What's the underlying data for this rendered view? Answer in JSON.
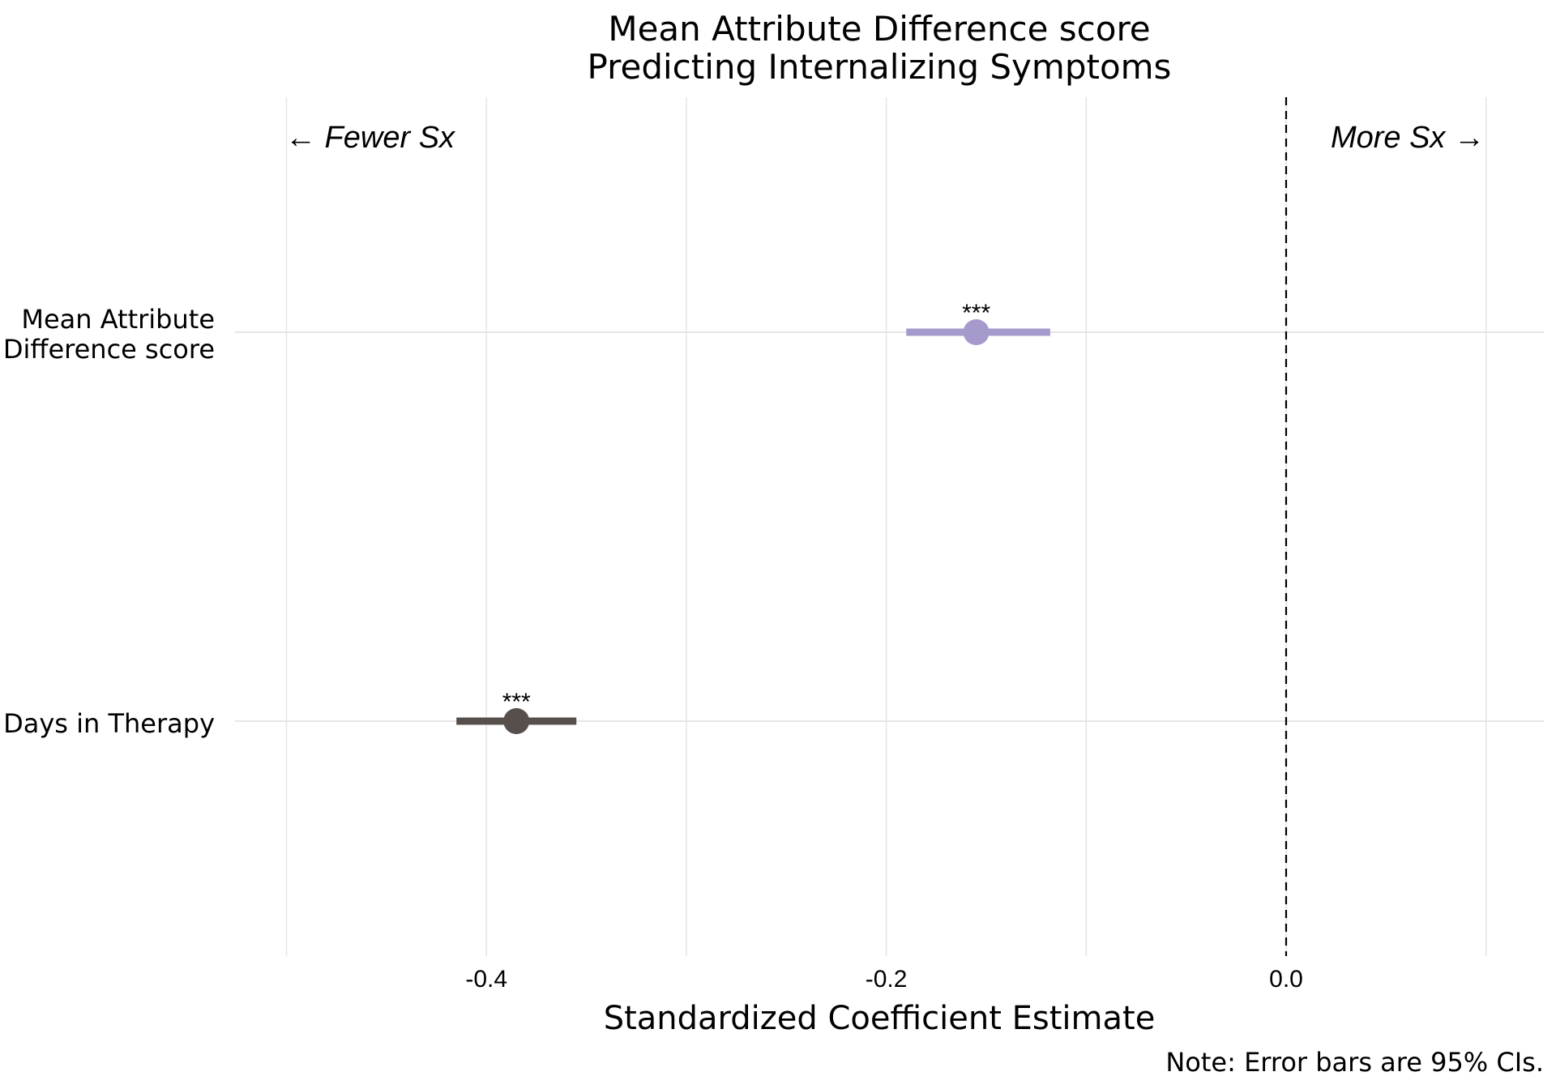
{
  "chart_data": {
    "type": "scatter",
    "subtype": "coefficient-plot",
    "title": [
      "Mean Attribute Difference score",
      "Predicting Internalizing Symptoms"
    ],
    "xlabel": "Standardized Coefficient Estimate",
    "ylabel": "",
    "xlim": [
      -0.5,
      0.13
    ],
    "x_ticks": [
      -0.4,
      -0.2,
      0.0
    ],
    "x_tick_labels": [
      "-0.4",
      "-0.2",
      "0.0"
    ],
    "reference_line": 0.0,
    "grid": true,
    "categories": [
      [
        "Mean Attribute",
        "Difference score"
      ],
      [
        "Days in Therapy"
      ]
    ],
    "points": [
      {
        "label": "Mean Attribute Difference score",
        "estimate": -0.155,
        "ci_low": -0.19,
        "ci_high": -0.118,
        "significance": "***",
        "color": "#a59acb"
      },
      {
        "label": "Days in Therapy",
        "estimate": -0.385,
        "ci_low": -0.415,
        "ci_high": -0.355,
        "significance": "***",
        "color": "#564f4b"
      }
    ],
    "annotations": {
      "left": "← Fewer Sx",
      "right": "More Sx →"
    },
    "note": "Note: Error bars are 95% CIs."
  }
}
